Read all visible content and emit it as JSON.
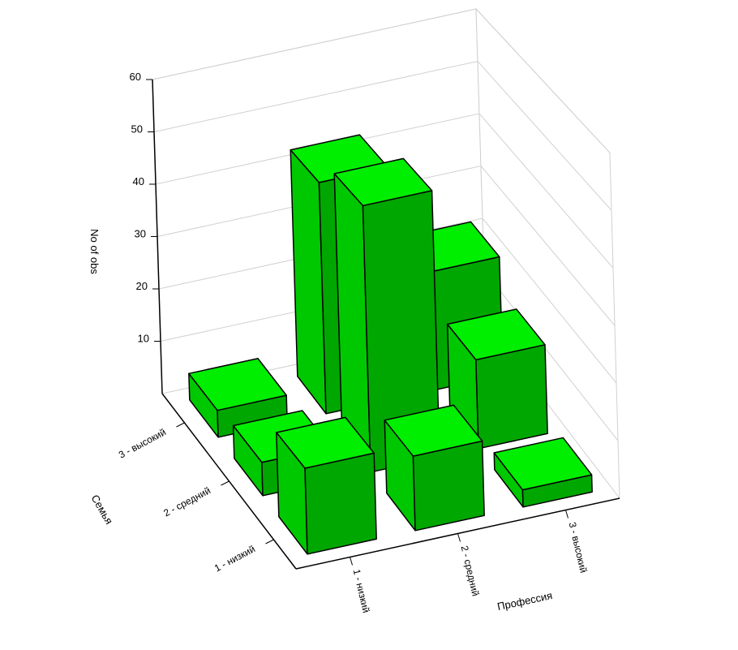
{
  "chart_data": {
    "type": "bar3d",
    "z_label": "No of obs",
    "x_label": "Профессия",
    "y_label": "Семья",
    "categories": [
      "1 - низкий",
      "2 - средний",
      "3 - высокий"
    ],
    "series": [
      {
        "name": "1 - низкий",
        "values": [
          15,
          13,
          3
        ]
      },
      {
        "name": "2 - средний",
        "values": [
          6,
          48,
          16
        ]
      },
      {
        "name": "3 - высокий",
        "values": [
          5,
          43,
          22
        ]
      }
    ],
    "color": "#00ee00",
    "zlim": [
      0,
      60
    ],
    "zticks": [
      10,
      20,
      30,
      40,
      50,
      60
    ],
    "grid": true
  }
}
